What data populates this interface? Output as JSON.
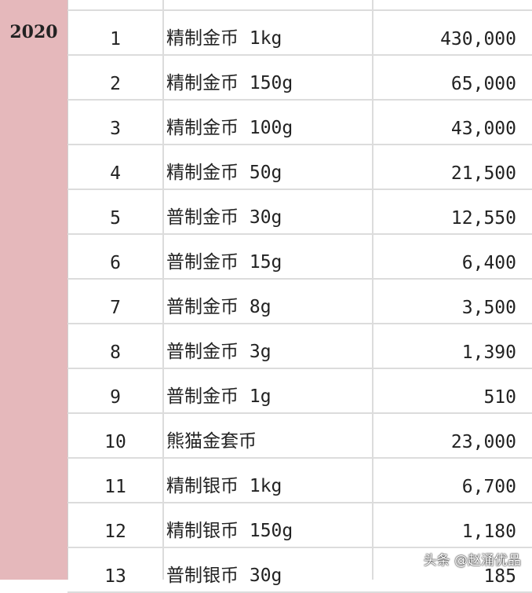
{
  "year": "2020",
  "rows": [
    {
      "no": "1",
      "name": "精制金币 1kg",
      "price": "430,000"
    },
    {
      "no": "2",
      "name": "精制金币 150g",
      "price": "65,000"
    },
    {
      "no": "3",
      "name": "精制金币 100g",
      "price": "43,000"
    },
    {
      "no": "4",
      "name": "精制金币 50g",
      "price": "21,500"
    },
    {
      "no": "5",
      "name": "普制金币 30g",
      "price": "12,550"
    },
    {
      "no": "6",
      "name": "普制金币 15g",
      "price": "6,400"
    },
    {
      "no": "7",
      "name": "普制金币 8g",
      "price": "3,500"
    },
    {
      "no": "8",
      "name": "普制金币 3g",
      "price": "1,390"
    },
    {
      "no": "9",
      "name": "普制金币 1g",
      "price": "510"
    },
    {
      "no": "10",
      "name": "熊猫金套币",
      "price": "23,000"
    },
    {
      "no": "11",
      "name": "精制银币 1kg",
      "price": "6,700"
    },
    {
      "no": "12",
      "name": "精制银币 150g",
      "price": "1,180"
    },
    {
      "no": "13",
      "name": "普制银币 30g",
      "price": "185"
    }
  ],
  "watermark": "头条 @赵涌优品"
}
